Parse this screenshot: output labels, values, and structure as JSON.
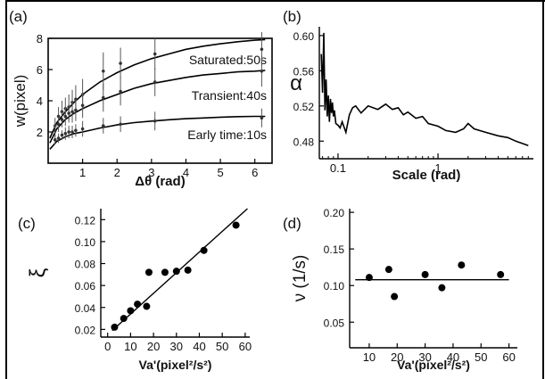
{
  "chart_data": [
    {
      "panel": "(a)",
      "type": "line",
      "xlabel": "Δθ (rad)",
      "ylabel": "w(pixel)",
      "xlim": [
        0,
        6.5
      ],
      "ylim": [
        0,
        8
      ],
      "xticks": [
        "1",
        "2",
        "3",
        "4",
        "5",
        "6"
      ],
      "yticks": [
        "2",
        "4",
        "6",
        "8"
      ],
      "grid": false,
      "series": [
        {
          "name": "Saturated:50s",
          "fit": {
            "x": [
              0.05,
              0.25,
              0.5,
              0.75,
              1,
              1.5,
              2,
              2.5,
              3,
              3.5,
              4,
              4.5,
              5,
              5.5,
              6,
              6.3
            ],
            "y": [
              1.6,
              2.6,
              3.3,
              3.9,
              4.4,
              5.2,
              5.8,
              6.3,
              6.7,
              7.0,
              7.3,
              7.5,
              7.65,
              7.78,
              7.88,
              7.92
            ]
          },
          "points": {
            "x": [
              0.2,
              0.3,
              0.4,
              0.5,
              0.6,
              0.7,
              0.8,
              1.0,
              1.6,
              2.1,
              3.1,
              6.2
            ],
            "y": [
              2.4,
              3.0,
              3.3,
              3.5,
              3.6,
              3.9,
              4.1,
              4.4,
              5.9,
              6.4,
              7.0,
              7.3
            ]
          },
          "error": [
            0.5,
            0.6,
            0.7,
            0.7,
            0.8,
            0.8,
            0.9,
            1.0,
            1.2,
            1.0,
            1.0,
            1.1
          ]
        },
        {
          "name": "Transient:40s",
          "fit": {
            "x": [
              0.05,
              0.25,
              0.5,
              0.75,
              1,
              1.5,
              2,
              2.5,
              3,
              3.5,
              4,
              4.5,
              5,
              5.5,
              6,
              6.3
            ],
            "y": [
              1.3,
              2.2,
              2.8,
              3.2,
              3.5,
              4.0,
              4.4,
              4.8,
              5.1,
              5.3,
              5.5,
              5.65,
              5.75,
              5.85,
              5.9,
              5.95
            ]
          },
          "points": {
            "x": [
              0.2,
              0.3,
              0.4,
              0.5,
              0.6,
              0.7,
              0.8,
              1.0,
              1.6,
              2.1,
              3.1,
              6.2
            ],
            "y": [
              2.1,
              2.5,
              2.8,
              3.0,
              3.2,
              3.3,
              3.4,
              3.7,
              4.2,
              4.6,
              5.2,
              5.9
            ]
          },
          "error": [
            0.4,
            0.5,
            0.5,
            0.6,
            0.6,
            0.7,
            0.7,
            0.8,
            0.9,
            0.9,
            0.9,
            1.0
          ]
        },
        {
          "name": "Early time:10s",
          "fit": {
            "x": [
              0.05,
              0.25,
              0.5,
              0.75,
              1,
              1.5,
              2,
              2.5,
              3,
              3.5,
              4,
              4.5,
              5,
              5.5,
              6,
              6.3
            ],
            "y": [
              0.9,
              1.4,
              1.7,
              1.9,
              2.0,
              2.25,
              2.45,
              2.6,
              2.7,
              2.78,
              2.85,
              2.9,
              2.95,
              2.98,
              3.0,
              3.0
            ]
          },
          "points": {
            "x": [
              0.2,
              0.3,
              0.4,
              0.5,
              0.6,
              0.7,
              0.8,
              1.0,
              1.6,
              2.1,
              3.1,
              6.2
            ],
            "y": [
              1.5,
              1.6,
              1.8,
              1.9,
              2.0,
              2.0,
              2.1,
              2.2,
              2.4,
              2.5,
              2.7,
              2.9
            ]
          },
          "error": [
            0.3,
            0.3,
            0.3,
            0.4,
            0.4,
            0.4,
            0.4,
            0.5,
            0.5,
            0.5,
            0.6,
            0.6
          ]
        }
      ]
    },
    {
      "panel": "(b)",
      "type": "line",
      "xlabel": "Scale (rad)",
      "ylabel": "α",
      "xscale": "log",
      "xlim": [
        0.065,
        9
      ],
      "ylim": [
        0.46,
        0.61
      ],
      "xticks": [
        "0.1",
        "1"
      ],
      "yticks": [
        "0.48",
        "0.52",
        "0.56",
        "0.60"
      ],
      "series": [
        {
          "x": [
            0.068,
            0.07,
            0.072,
            0.074,
            0.076,
            0.078,
            0.08,
            0.082,
            0.084,
            0.086,
            0.088,
            0.09,
            0.092,
            0.095,
            0.1,
            0.105,
            0.11,
            0.12,
            0.13,
            0.14,
            0.15,
            0.17,
            0.2,
            0.25,
            0.3,
            0.35,
            0.4,
            0.45,
            0.5,
            0.6,
            0.7,
            0.8,
            1.0,
            1.2,
            1.5,
            1.8,
            2.0,
            2.3,
            3.0,
            4.0,
            5.0,
            6.0,
            8.0
          ],
          "y": [
            0.579,
            0.535,
            0.603,
            0.515,
            0.55,
            0.508,
            0.532,
            0.502,
            0.528,
            0.512,
            0.524,
            0.508,
            0.515,
            0.5,
            0.498,
            0.495,
            0.502,
            0.49,
            0.51,
            0.518,
            0.52,
            0.512,
            0.52,
            0.516,
            0.522,
            0.516,
            0.518,
            0.51,
            0.513,
            0.506,
            0.508,
            0.5,
            0.497,
            0.492,
            0.49,
            0.494,
            0.5,
            0.494,
            0.49,
            0.486,
            0.484,
            0.48,
            0.475
          ]
        }
      ]
    },
    {
      "panel": "(c)",
      "type": "scatter",
      "xlabel": "Va'(pixel²/s²)",
      "ylabel": "ξ",
      "xlim": [
        -3,
        62
      ],
      "ylim": [
        0.013,
        0.13
      ],
      "xticks": [
        "0",
        "10",
        "20",
        "30",
        "40",
        "50",
        "60"
      ],
      "yticks": [
        "0.02",
        "0.04",
        "0.06",
        "0.08",
        "0.10",
        "0.12"
      ],
      "series": [
        {
          "x": [
            3,
            7,
            10,
            13,
            17,
            18,
            25,
            30,
            35,
            42,
            56
          ],
          "y": [
            0.022,
            0.03,
            0.037,
            0.043,
            0.041,
            0.072,
            0.072,
            0.073,
            0.074,
            0.092,
            0.115
          ]
        }
      ],
      "fit": {
        "x": [
          2,
          61
        ],
        "y": [
          0.019,
          0.13
        ]
      }
    },
    {
      "panel": "(d)",
      "type": "scatter",
      "xlabel": "Va'(pixel²/s²)",
      "ylabel": "ν (1/s)",
      "xlim": [
        3,
        63
      ],
      "ylim": [
        0.015,
        0.205
      ],
      "xticks": [
        "10",
        "20",
        "30",
        "40",
        "50",
        "60"
      ],
      "yticks": [
        "0.05",
        "0.10",
        "0.15",
        "0.20"
      ],
      "series": [
        {
          "x": [
            10,
            17,
            19,
            30,
            36,
            43,
            57
          ],
          "y": [
            0.111,
            0.122,
            0.085,
            0.115,
            0.097,
            0.128,
            0.115
          ]
        }
      ],
      "fit": {
        "x": [
          5,
          60
        ],
        "y": [
          0.108,
          0.108
        ]
      }
    }
  ]
}
